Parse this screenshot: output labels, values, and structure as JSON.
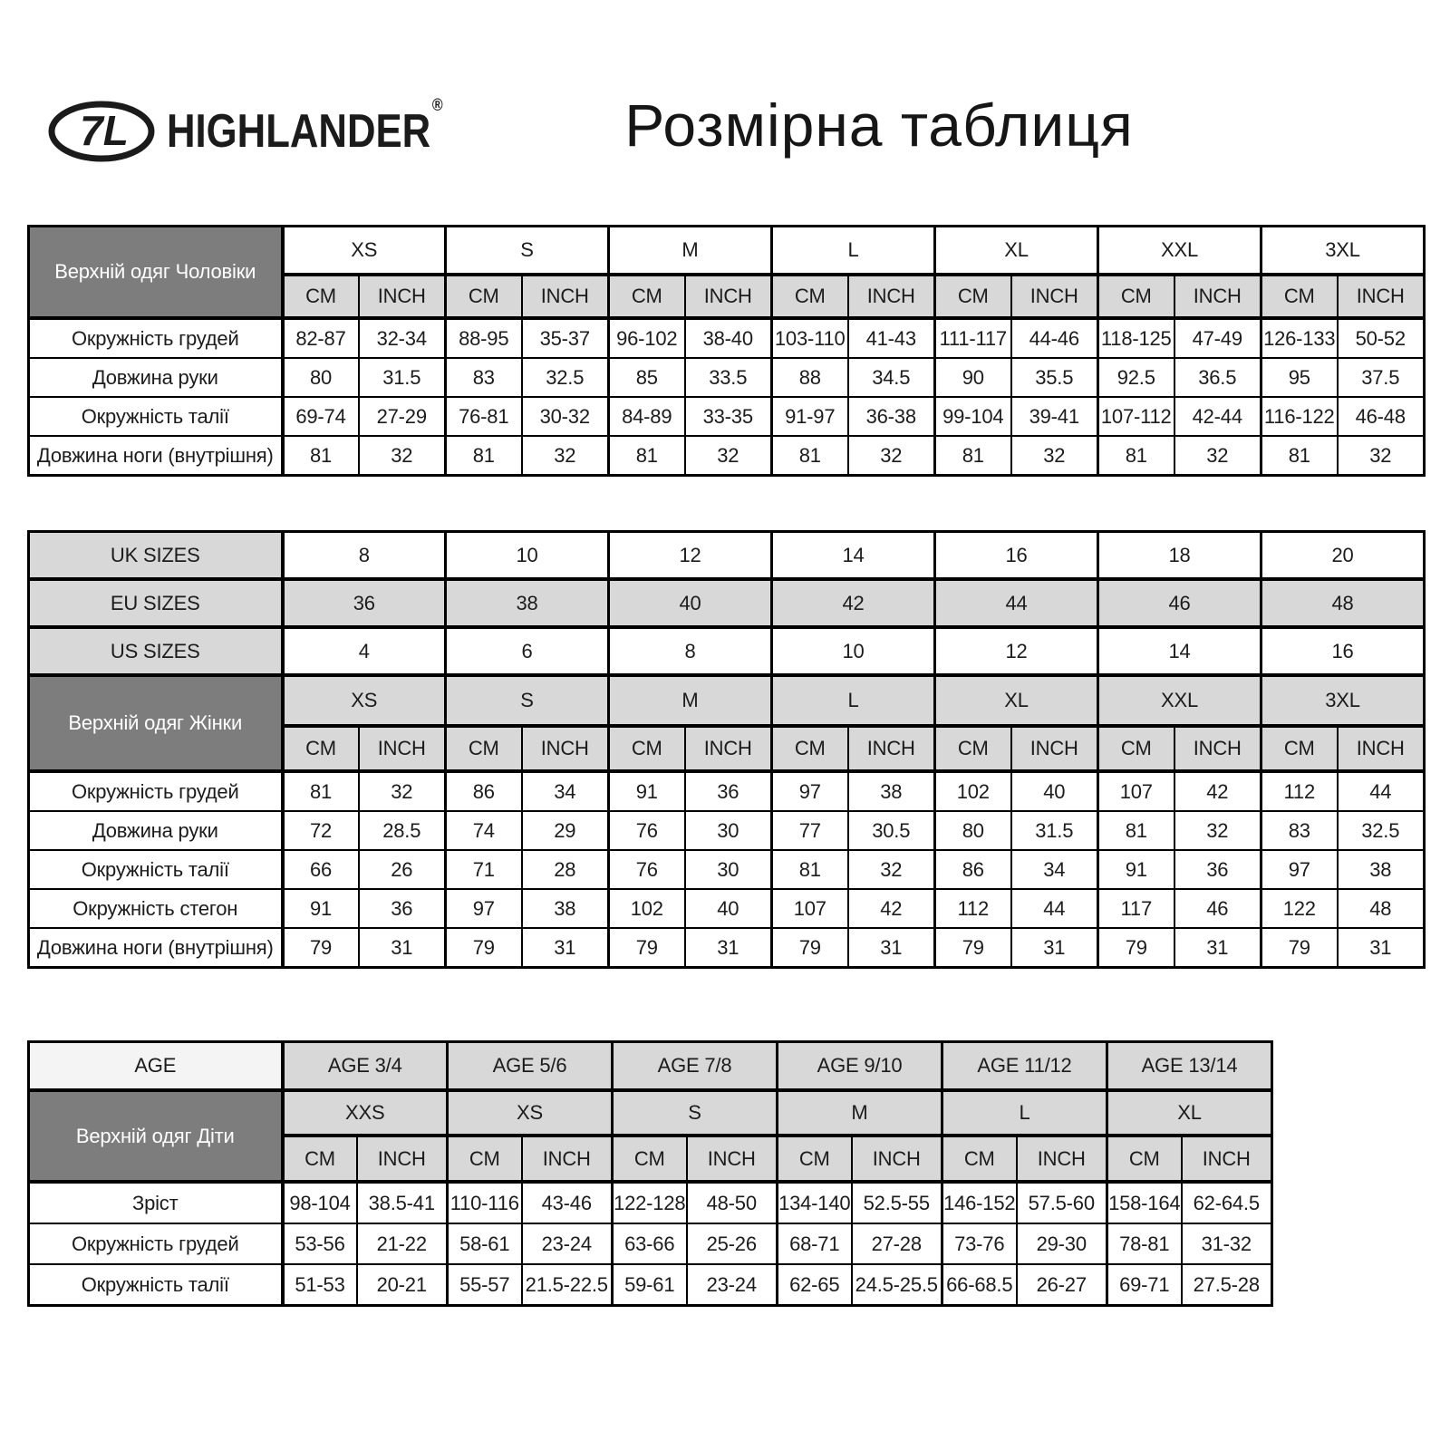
{
  "colors": {
    "dark_header_bg": "#7d7d7d",
    "light_cell_bg": "#d8d8d8",
    "age_label_bg": "#f4f4f4",
    "border": "#000000",
    "text": "#1c1c1c"
  },
  "header": {
    "brand_name": "HIGHLANDER",
    "registered_mark": "®",
    "logo_icon": "highlander-oval-7l-monogram",
    "logo_monogram": "7L",
    "title": "Розмірна таблиця"
  },
  "units": [
    "CM",
    "INCH"
  ],
  "tables": {
    "men": {
      "label_lines": [
        "Верхній одяг",
        "Чоловіки"
      ],
      "sizes": [
        "XS",
        "S",
        "M",
        "L",
        "XL",
        "XXL",
        "3XL"
      ],
      "rows": [
        {
          "label": "Окружність грудей",
          "values": [
            "82-87",
            "32-34",
            "88-95",
            "35-37",
            "96-102",
            "38-40",
            "103-110",
            "41-43",
            "111-117",
            "44-46",
            "118-125",
            "47-49",
            "126-133",
            "50-52"
          ]
        },
        {
          "label": "Довжина руки",
          "values": [
            "80",
            "31.5",
            "83",
            "32.5",
            "85",
            "33.5",
            "88",
            "34.5",
            "90",
            "35.5",
            "92.5",
            "36.5",
            "95",
            "37.5"
          ]
        },
        {
          "label": "Окружність талії",
          "values": [
            "69-74",
            "27-29",
            "76-81",
            "30-32",
            "84-89",
            "33-35",
            "91-97",
            "36-38",
            "99-104",
            "39-41",
            "107-112",
            "42-44",
            "116-122",
            "46-48"
          ]
        },
        {
          "label": "Довжина ноги (внутрішня)",
          "values": [
            "81",
            "32",
            "81",
            "32",
            "81",
            "32",
            "81",
            "32",
            "81",
            "32",
            "81",
            "32",
            "81",
            "32"
          ]
        }
      ]
    },
    "women": {
      "size_system_rows": [
        {
          "label": "UK SIZES",
          "values": [
            "8",
            "10",
            "12",
            "14",
            "16",
            "18",
            "20"
          ],
          "values_bg": "white"
        },
        {
          "label": "EU SIZES",
          "values": [
            "36",
            "38",
            "40",
            "42",
            "44",
            "46",
            "48"
          ],
          "values_bg": "gray"
        },
        {
          "label": "US SIZES",
          "values": [
            "4",
            "6",
            "8",
            "10",
            "12",
            "14",
            "16"
          ],
          "values_bg": "white"
        }
      ],
      "label_lines": [
        "Верхній одяг",
        "Жінки"
      ],
      "sizes": [
        "XS",
        "S",
        "M",
        "L",
        "XL",
        "XXL",
        "3XL"
      ],
      "rows": [
        {
          "label": "Окружність грудей",
          "values": [
            "81",
            "32",
            "86",
            "34",
            "91",
            "36",
            "97",
            "38",
            "102",
            "40",
            "107",
            "42",
            "112",
            "44"
          ]
        },
        {
          "label": "Довжина руки",
          "values": [
            "72",
            "28.5",
            "74",
            "29",
            "76",
            "30",
            "77",
            "30.5",
            "80",
            "31.5",
            "81",
            "32",
            "83",
            "32.5"
          ]
        },
        {
          "label": "Окружність талії",
          "values": [
            "66",
            "26",
            "71",
            "28",
            "76",
            "30",
            "81",
            "32",
            "86",
            "34",
            "91",
            "36",
            "97",
            "38"
          ]
        },
        {
          "label": "Окружність стегон",
          "values": [
            "91",
            "36",
            "97",
            "38",
            "102",
            "40",
            "107",
            "42",
            "112",
            "44",
            "117",
            "46",
            "122",
            "48"
          ]
        },
        {
          "label": "Довжина ноги (внутрішня)",
          "values": [
            "79",
            "31",
            "79",
            "31",
            "79",
            "31",
            "79",
            "31",
            "79",
            "31",
            "79",
            "31",
            "79",
            "31"
          ]
        }
      ]
    },
    "children": {
      "age_label": "AGE",
      "ages": [
        "AGE 3/4",
        "AGE 5/6",
        "AGE 7/8",
        "AGE 9/10",
        "AGE 11/12",
        "AGE 13/14"
      ],
      "label_lines": [
        "Верхній одяг",
        "Діти"
      ],
      "sizes": [
        "XXS",
        "XS",
        "S",
        "M",
        "L",
        "XL"
      ],
      "rows": [
        {
          "label": "Зріст",
          "values": [
            "98-104",
            "38.5-41",
            "110-116",
            "43-46",
            "122-128",
            "48-50",
            "134-140",
            "52.5-55",
            "146-152",
            "57.5-60",
            "158-164",
            "62-64.5"
          ]
        },
        {
          "label": "Окружність грудей",
          "values": [
            "53-56",
            "21-22",
            "58-61",
            "23-24",
            "63-66",
            "25-26",
            "68-71",
            "27-28",
            "73-76",
            "29-30",
            "78-81",
            "31-32"
          ]
        },
        {
          "label": "Окружність талії",
          "values": [
            "51-53",
            "20-21",
            "55-57",
            "21.5-22.5",
            "59-61",
            "23-24",
            "62-65",
            "24.5-25.5",
            "66-68.5",
            "26-27",
            "69-71",
            "27.5-28"
          ]
        }
      ]
    }
  }
}
